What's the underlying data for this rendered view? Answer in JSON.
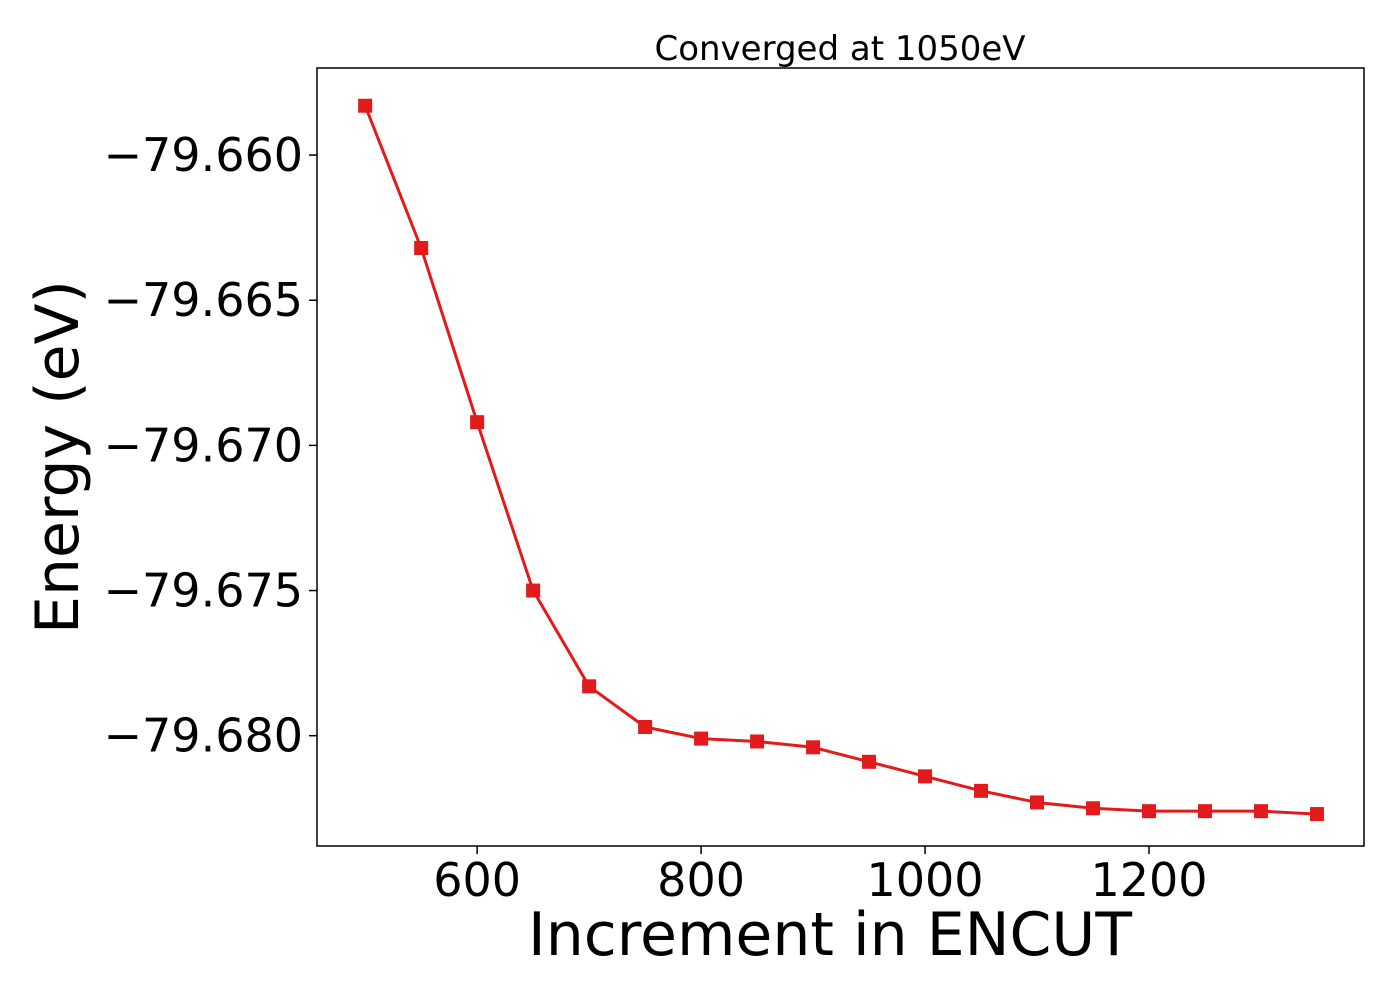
{
  "chart_data": {
    "type": "line",
    "title": "Converged at 1050eV",
    "xlabel": "Increment in ENCUT",
    "ylabel": "Energy (eV)",
    "xlim": [
      457,
      1392
    ],
    "ylim": [
      -79.6838,
      -79.657
    ],
    "xticks": [
      600,
      800,
      1000,
      1200
    ],
    "xtick_labels": [
      "600",
      "800",
      "1000",
      "1200"
    ],
    "yticks": [
      -79.66,
      -79.665,
      -79.67,
      -79.675,
      -79.68
    ],
    "ytick_labels": [
      "−79.660",
      "−79.665",
      "−79.670",
      "−79.675",
      "−79.680"
    ],
    "grid": false,
    "legend": "none",
    "series": [
      {
        "color": "#e31a1c",
        "marker": "square",
        "x": [
          500,
          550,
          600,
          650,
          700,
          750,
          800,
          850,
          900,
          950,
          1000,
          1050,
          1100,
          1150,
          1200,
          1250,
          1300,
          1350
        ],
        "values": [
          -79.6583,
          -79.6632,
          -79.6692,
          -79.675,
          -79.6783,
          -79.6797,
          -79.6801,
          -79.6802,
          -79.6804,
          -79.6809,
          -79.6814,
          -79.6819,
          -79.6823,
          -79.6825,
          -79.6826,
          -79.6826,
          -79.6826,
          -79.6827
        ]
      }
    ]
  }
}
